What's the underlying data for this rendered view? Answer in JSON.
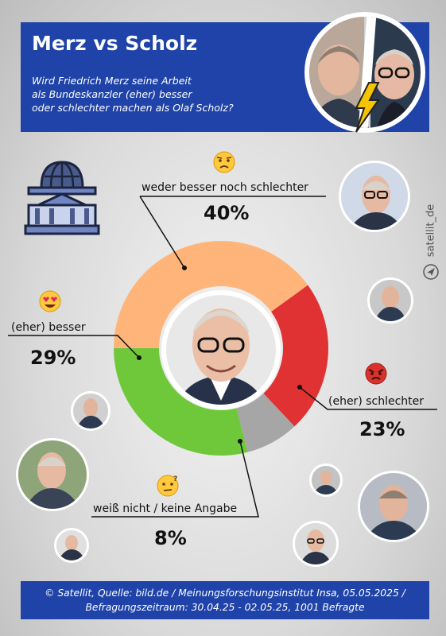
{
  "header": {
    "title": "Merz vs Scholz",
    "question_lines": [
      "Wird Friedrich Merz seine Arbeit",
      "als Bundeskanzler (eher) besser",
      "oder schlechter machen als Olaf Scholz?"
    ]
  },
  "watermark": "satellit_de",
  "footer": {
    "line1": "© Satellit, Quelle: bild.de / Meinungsforschungsinstitut Insa, 05.05.2025 /",
    "line2": "Befragungszeitraum: 30.04.25 - 02.05.25, 1001 Befragte"
  },
  "labels": {
    "neutral": "weder besser noch schlechter",
    "neutral_pct": "40%",
    "better": "(eher) besser",
    "better_pct": "29%",
    "worse": "(eher) schlechter",
    "worse_pct": "23%",
    "unknown": "weiß nicht / keine Angabe",
    "unknown_pct": "8%"
  },
  "colors": {
    "header_bg": "#1f43a8",
    "neutral": "#ffb479",
    "worse": "#e03232",
    "unknown": "#a6a6a6",
    "better": "#6fc83a"
  },
  "icons": [
    "reichstag-icon",
    "worried-face-icon",
    "heart-eyes-face-icon",
    "angry-face-icon",
    "thinking-face-icon",
    "lightning-icon",
    "send-icon"
  ],
  "chart_data": {
    "type": "pie",
    "style": "donut",
    "start": "clockwise from 9 o'clock",
    "categories": [
      "weder besser noch schlechter",
      "(eher) schlechter",
      "weiß nicht / keine Angabe",
      "(eher) besser"
    ],
    "values": [
      40,
      23,
      8,
      29
    ],
    "colors": [
      "#ffb479",
      "#e03232",
      "#a6a6a6",
      "#6fc83a"
    ]
  }
}
